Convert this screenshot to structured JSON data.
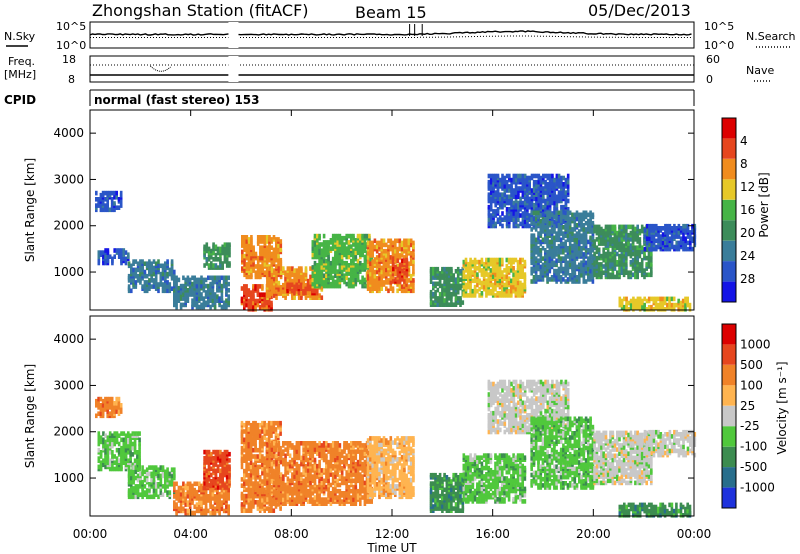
{
  "header": {
    "station_title": "Zhongshan Station (fitACF)",
    "beam_label": "Beam 15",
    "date_label": "05/Dec/2013"
  },
  "noise_panel": {
    "left_label": "N.Sky",
    "right_label": "N.Search",
    "left_ticks": [
      "10^5",
      "10^0"
    ],
    "right_ticks": [
      "10^5",
      "10^0"
    ]
  },
  "freq_panel": {
    "left_label_line1": "Freq.",
    "left_label_line2": "[MHz]",
    "right_label": "Nave",
    "left_ticks": [
      "18",
      "8"
    ],
    "right_ticks": [
      "60",
      "0"
    ]
  },
  "cpid_panel": {
    "label": "CPID",
    "mode_text": "normal (fast stereo) 153"
  },
  "x_axis": {
    "label": "Time UT",
    "ticks": [
      "00:00",
      "04:00",
      "08:00",
      "12:00",
      "16:00",
      "20:00",
      "00:00"
    ]
  },
  "chart_data": [
    {
      "type": "heatmap",
      "title": "Power",
      "xlabel": "Time UT",
      "ylabel": "Slant Range [km]",
      "xlim": [
        0,
        24
      ],
      "ylim": [
        180,
        4500
      ],
      "yticks": [
        "1000",
        "2000",
        "3000",
        "4000"
      ],
      "colorbar": {
        "label": "Power [dB]",
        "tick_labels": [
          "4",
          "8",
          "12",
          "16",
          "20",
          "24",
          "28"
        ],
        "colors": [
          "#1414e6",
          "#2a55c8",
          "#3a7d9a",
          "#3c8c5a",
          "#46b446",
          "#e6c828",
          "#f08c1e",
          "#e6461e",
          "#dc0000"
        ]
      },
      "gap_hours": [
        5.5,
        5.9
      ],
      "bands": [
        {
          "t0": 0.2,
          "t1": 1.2,
          "r0": 2350,
          "r1": 2750,
          "level": 1
        },
        {
          "t0": 0.3,
          "t1": 1.5,
          "r0": 1200,
          "r1": 1500,
          "level": 1
        },
        {
          "t0": 1.5,
          "t1": 3.3,
          "r0": 600,
          "r1": 1250,
          "level": 2
        },
        {
          "t0": 3.3,
          "t1": 5.5,
          "r0": 250,
          "r1": 900,
          "level": 2
        },
        {
          "t0": 4.5,
          "t1": 5.5,
          "r0": 1100,
          "r1": 1600,
          "level": 3
        },
        {
          "t0": 5.9,
          "t1": 7.2,
          "r0": 200,
          "r1": 700,
          "level": 7
        },
        {
          "t0": 6.0,
          "t1": 7.6,
          "r0": 900,
          "r1": 1800,
          "level": 6
        },
        {
          "t0": 7.0,
          "t1": 9.2,
          "r0": 450,
          "r1": 1100,
          "level": 6
        },
        {
          "t0": 7.8,
          "t1": 9.0,
          "r0": 550,
          "r1": 750,
          "level": 7
        },
        {
          "t0": 8.8,
          "t1": 11.2,
          "r0": 700,
          "r1": 1800,
          "level": 4
        },
        {
          "t0": 11.0,
          "t1": 12.8,
          "r0": 600,
          "r1": 1700,
          "level": 6
        },
        {
          "t0": 12.0,
          "t1": 12.6,
          "r0": 800,
          "r1": 1300,
          "level": 7
        },
        {
          "t0": 13.5,
          "t1": 14.8,
          "r0": 300,
          "r1": 1100,
          "level": 3
        },
        {
          "t0": 14.8,
          "t1": 17.3,
          "r0": 500,
          "r1": 1300,
          "level": 5
        },
        {
          "t0": 15.8,
          "t1": 19.0,
          "r0": 2000,
          "r1": 3100,
          "level": 1
        },
        {
          "t0": 17.5,
          "t1": 20.0,
          "r0": 800,
          "r1": 2300,
          "level": 2
        },
        {
          "t0": 20.0,
          "t1": 22.3,
          "r0": 900,
          "r1": 2000,
          "level": 3
        },
        {
          "t0": 21.0,
          "t1": 23.8,
          "r0": 200,
          "r1": 450,
          "level": 5
        },
        {
          "t0": 22.0,
          "t1": 24.0,
          "r0": 1500,
          "r1": 2000,
          "level": 1
        }
      ]
    },
    {
      "type": "heatmap",
      "title": "Velocity",
      "xlabel": "Time UT",
      "ylabel": "Slant Range [km]",
      "xlim": [
        0,
        24
      ],
      "ylim": [
        180,
        4500
      ],
      "yticks": [
        "1000",
        "2000",
        "3000",
        "4000"
      ],
      "colorbar": {
        "label": "Velocity [m s⁻¹]",
        "tick_labels": [
          "1000",
          "500",
          "100",
          "25",
          "-25",
          "-100",
          "-500",
          "-1000"
        ],
        "colors": [
          "#1e32dc",
          "#286e8c",
          "#3c8c50",
          "#50c83c",
          "#c8c8c8",
          "#ffb450",
          "#f08228",
          "#e6461e",
          "#dc0000"
        ]
      },
      "gap_hours": [
        5.5,
        5.9
      ],
      "bands": [
        {
          "t0": 0.2,
          "t1": 1.2,
          "r0": 2350,
          "r1": 2750,
          "level": 6
        },
        {
          "t0": 0.3,
          "t1": 2.0,
          "r0": 1200,
          "r1": 2000,
          "level": 3
        },
        {
          "t0": 1.5,
          "t1": 3.3,
          "r0": 600,
          "r1": 1250,
          "level": 3
        },
        {
          "t0": 3.3,
          "t1": 5.5,
          "r0": 250,
          "r1": 900,
          "level": 6
        },
        {
          "t0": 4.5,
          "t1": 5.5,
          "r0": 800,
          "r1": 1600,
          "level": 7
        },
        {
          "t0": 5.9,
          "t1": 7.6,
          "r0": 300,
          "r1": 2200,
          "level": 6
        },
        {
          "t0": 7.0,
          "t1": 11.2,
          "r0": 450,
          "r1": 1800,
          "level": 6
        },
        {
          "t0": 11.0,
          "t1": 12.8,
          "r0": 600,
          "r1": 1900,
          "level": 5
        },
        {
          "t0": 13.5,
          "t1": 14.8,
          "r0": 300,
          "r1": 1100,
          "level": 2
        },
        {
          "t0": 14.8,
          "t1": 17.3,
          "r0": 500,
          "r1": 1500,
          "level": 3
        },
        {
          "t0": 15.8,
          "t1": 19.0,
          "r0": 2000,
          "r1": 3100,
          "level": 4
        },
        {
          "t0": 17.5,
          "t1": 20.0,
          "r0": 800,
          "r1": 2300,
          "level": 3
        },
        {
          "t0": 20.0,
          "t1": 22.3,
          "r0": 900,
          "r1": 2000,
          "level": 4
        },
        {
          "t0": 21.0,
          "t1": 23.8,
          "r0": 200,
          "r1": 450,
          "level": 2
        },
        {
          "t0": 22.0,
          "t1": 24.0,
          "r0": 1500,
          "r1": 2000,
          "level": 4
        }
      ]
    }
  ]
}
